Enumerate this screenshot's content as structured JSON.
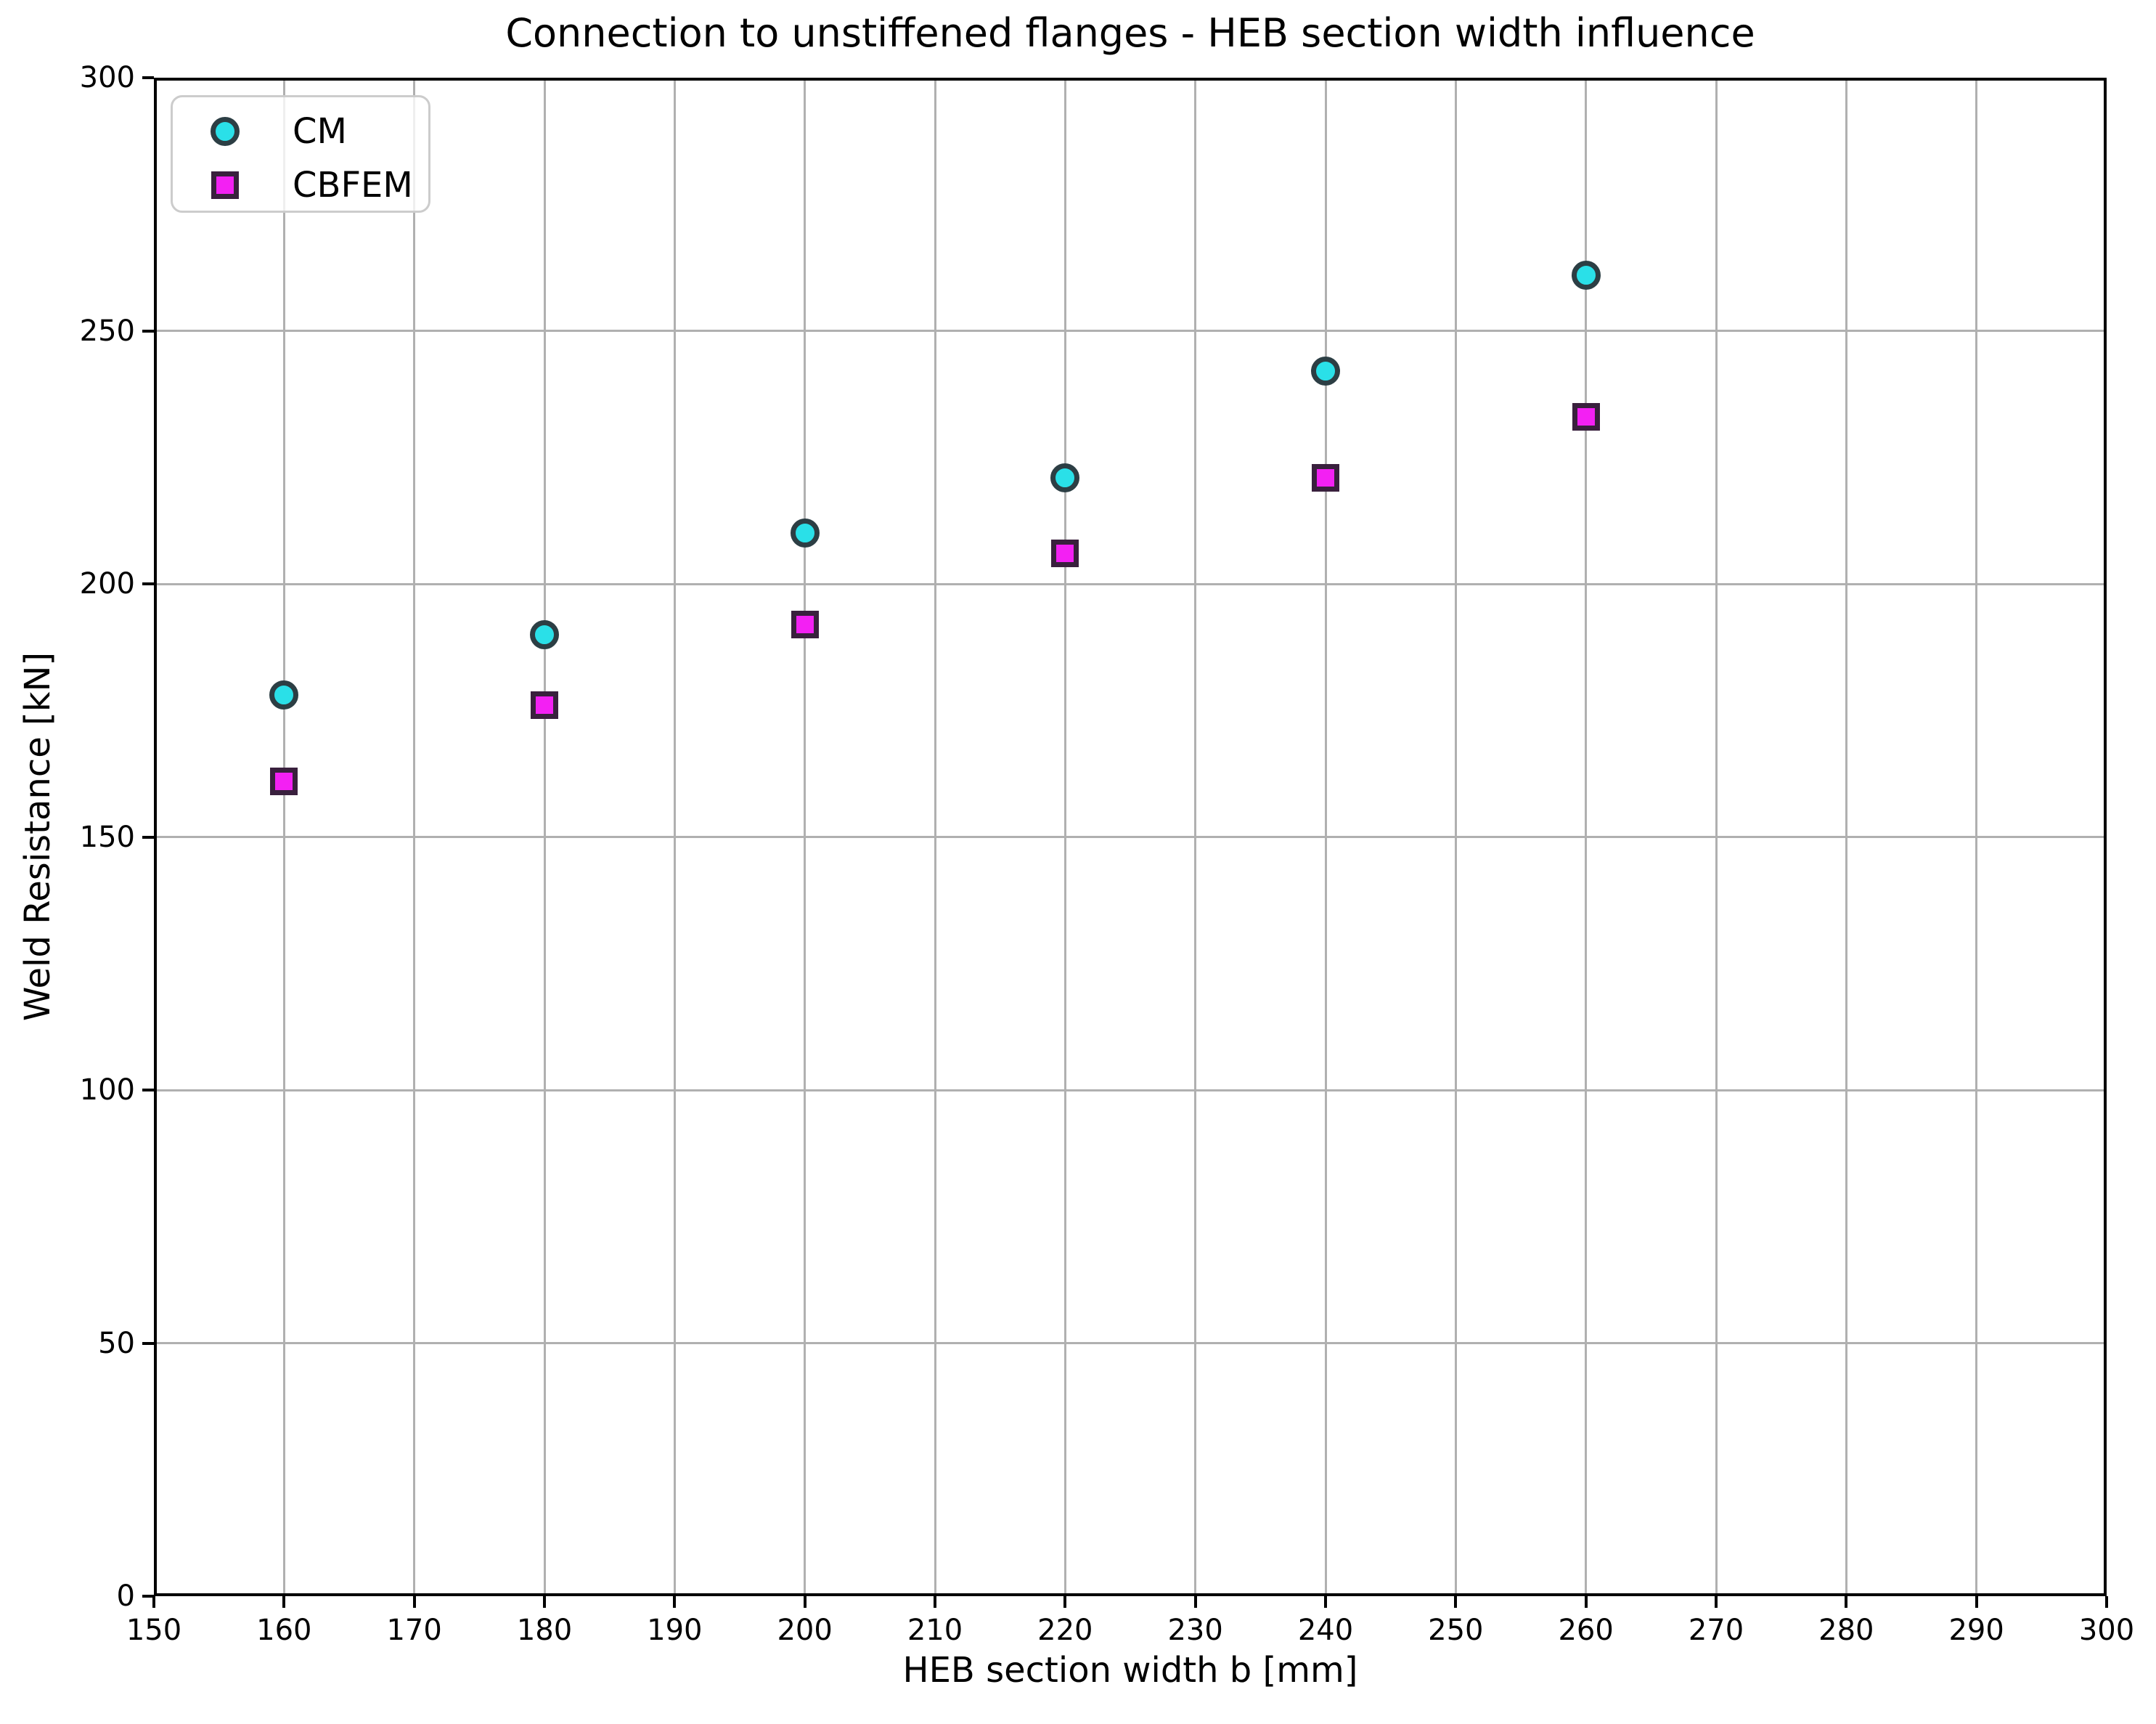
{
  "chart_data": {
    "type": "scatter",
    "title": "Connection to unstiffened flanges - HEB section width influence",
    "xlabel": "HEB section width b [mm]",
    "ylabel": "Weld Resistance [kN]",
    "xlim": [
      150,
      300
    ],
    "ylim": [
      0,
      300
    ],
    "x_ticks": [
      150,
      160,
      170,
      180,
      190,
      200,
      210,
      220,
      230,
      240,
      250,
      260,
      270,
      280,
      290,
      300
    ],
    "y_ticks": [
      0,
      50,
      100,
      150,
      200,
      250,
      300
    ],
    "grid": true,
    "grid_color": "#b0b0b0",
    "axis_color": "#000000",
    "legend": {
      "position": "upper-left"
    },
    "x": [
      160,
      180,
      200,
      220,
      240,
      260
    ],
    "series": [
      {
        "name": "CM",
        "marker": "circle",
        "fill_color": "#2ae0e8",
        "edge_color": "#2c3e44",
        "values": [
          178,
          190,
          210,
          221,
          242,
          261
        ]
      },
      {
        "name": "CBFEM",
        "marker": "square",
        "fill_color": "#f320f3",
        "edge_color": "#39203d",
        "values": [
          161,
          176,
          192,
          206,
          221,
          233
        ]
      }
    ]
  }
}
